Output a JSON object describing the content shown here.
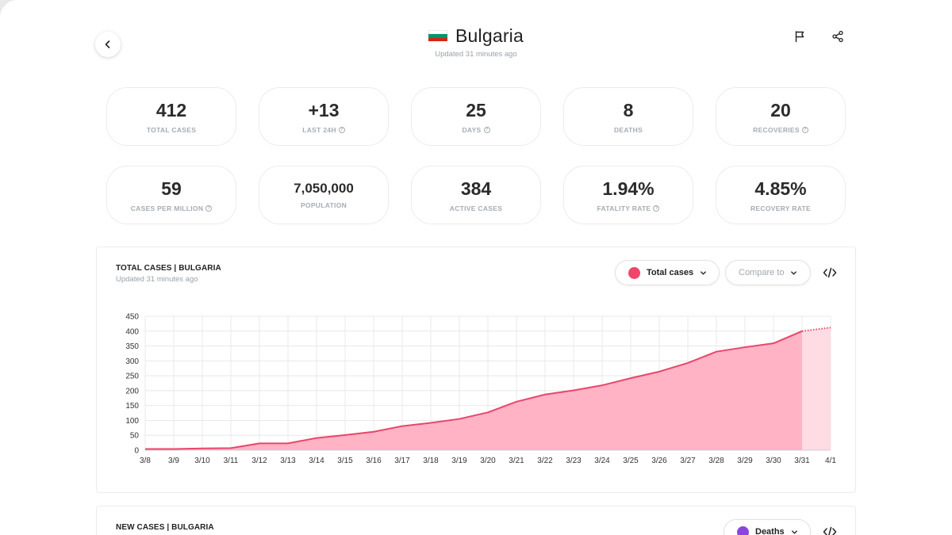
{
  "header": {
    "country": "Bulgaria",
    "updated": "Updated 31 minutes ago",
    "flag_colors": [
      "#ffffff",
      "#00966e",
      "#d62612"
    ],
    "icons": {
      "back": "chevron-left-icon",
      "report": "flag-icon",
      "share": "share-icon"
    }
  },
  "stats_row1": [
    {
      "value": "412",
      "label": "TOTAL CASES",
      "info": false
    },
    {
      "value": "+13",
      "label": "LAST 24H",
      "info": true
    },
    {
      "value": "25",
      "label": "DAYS",
      "info": true
    },
    {
      "value": "8",
      "label": "DEATHS",
      "info": false
    },
    {
      "value": "20",
      "label": "RECOVERIES",
      "info": true
    }
  ],
  "stats_row2": [
    {
      "value": "59",
      "label": "CASES PER MILLION",
      "info": true
    },
    {
      "value": "7,050,000",
      "label": "POPULATION",
      "info": false
    },
    {
      "value": "384",
      "label": "ACTIVE CASES",
      "info": false
    },
    {
      "value": "1.94%",
      "label": "FATALITY RATE",
      "info": true
    },
    {
      "value": "4.85%",
      "label": "RECOVERY RATE",
      "info": false
    }
  ],
  "total_card": {
    "title": "TOTAL CASES | BULGARIA",
    "updated": "Updated 31 minutes ago",
    "metric_select": {
      "label": "Total cases",
      "color": "#f2456a"
    },
    "compare_select": {
      "placeholder": "Compare to"
    }
  },
  "new_card": {
    "title": "NEW CASES | BULGARIA",
    "metric_select": {
      "label": "Deaths",
      "color": "#8b44e0"
    }
  },
  "chart_data": {
    "type": "area",
    "title": "TOTAL CASES | BULGARIA",
    "x": [
      "3/8",
      "3/9",
      "3/10",
      "3/11",
      "3/12",
      "3/13",
      "3/14",
      "3/15",
      "3/16",
      "3/17",
      "3/18",
      "3/19",
      "3/20",
      "3/21",
      "3/22",
      "3/23",
      "3/24",
      "3/25",
      "3/26",
      "3/27",
      "3/28",
      "3/29",
      "3/30",
      "3/31",
      "4/1"
    ],
    "series": [
      {
        "values": [
          4,
          4,
          6,
          7,
          23,
          23,
          41,
          51,
          62,
          81,
          92,
          105,
          127,
          163,
          187,
          201,
          218,
          242,
          264,
          293,
          331,
          346,
          359,
          400,
          412
        ],
        "projected_from_index": 23
      }
    ],
    "yticks": [
      0,
      50,
      100,
      150,
      200,
      250,
      300,
      350,
      400,
      450
    ],
    "ylim": [
      0,
      450
    ],
    "grid": true,
    "line_color": "#e8466a",
    "fill_color": "#ffb3c5",
    "projected_fill_color": "#ffdbe3"
  }
}
